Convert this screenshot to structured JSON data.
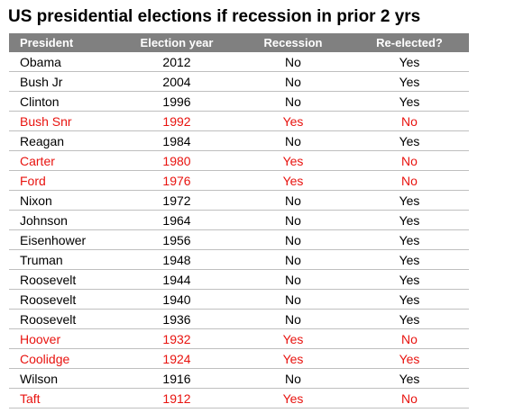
{
  "title": "US presidential elections if recession in prior 2 yrs",
  "colors": {
    "header_bg": "#808080",
    "header_text": "#ffffff",
    "highlight_text": "#e8130f",
    "normal_text": "#000000",
    "row_divider": "#bfbfbf"
  },
  "table": {
    "headers": [
      "President",
      "Election year",
      "Recession",
      "Re-elected?"
    ],
    "rows": [
      {
        "president": "Obama",
        "year": "2012",
        "recession": "No",
        "reelected": "Yes",
        "highlight": false
      },
      {
        "president": "Bush Jr",
        "year": "2004",
        "recession": "No",
        "reelected": "Yes",
        "highlight": false
      },
      {
        "president": "Clinton",
        "year": "1996",
        "recession": "No",
        "reelected": "Yes",
        "highlight": false
      },
      {
        "president": "Bush Snr",
        "year": "1992",
        "recession": "Yes",
        "reelected": "No",
        "highlight": true
      },
      {
        "president": "Reagan",
        "year": "1984",
        "recession": "No",
        "reelected": "Yes",
        "highlight": false
      },
      {
        "president": "Carter",
        "year": "1980",
        "recession": "Yes",
        "reelected": "No",
        "highlight": true
      },
      {
        "president": "Ford",
        "year": "1976",
        "recession": "Yes",
        "reelected": "No",
        "highlight": true
      },
      {
        "president": "Nixon",
        "year": "1972",
        "recession": "No",
        "reelected": "Yes",
        "highlight": false
      },
      {
        "president": "Johnson",
        "year": "1964",
        "recession": "No",
        "reelected": "Yes",
        "highlight": false
      },
      {
        "president": "Eisenhower",
        "year": "1956",
        "recession": "No",
        "reelected": "Yes",
        "highlight": false
      },
      {
        "president": "Truman",
        "year": "1948",
        "recession": "No",
        "reelected": "Yes",
        "highlight": false
      },
      {
        "president": "Roosevelt",
        "year": "1944",
        "recession": "No",
        "reelected": "Yes",
        "highlight": false
      },
      {
        "president": "Roosevelt",
        "year": "1940",
        "recession": "No",
        "reelected": "Yes",
        "highlight": false
      },
      {
        "president": "Roosevelt",
        "year": "1936",
        "recession": "No",
        "reelected": "Yes",
        "highlight": false
      },
      {
        "president": "Hoover",
        "year": "1932",
        "recession": "Yes",
        "reelected": "No",
        "highlight": true
      },
      {
        "president": "Coolidge",
        "year": "1924",
        "recession": "Yes",
        "reelected": "Yes",
        "highlight": true
      },
      {
        "president": "Wilson",
        "year": "1916",
        "recession": "No",
        "reelected": "Yes",
        "highlight": false
      },
      {
        "president": "Taft",
        "year": "1912",
        "recession": "Yes",
        "reelected": "No",
        "highlight": true
      }
    ]
  }
}
